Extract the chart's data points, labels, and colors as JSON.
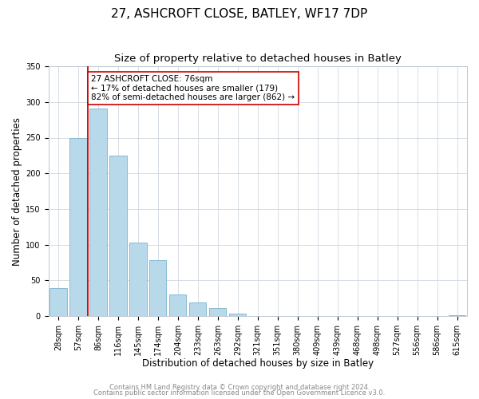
{
  "title": "27, ASHCROFT CLOSE, BATLEY, WF17 7DP",
  "subtitle": "Size of property relative to detached houses in Batley",
  "xlabel": "Distribution of detached houses by size in Batley",
  "ylabel": "Number of detached properties",
  "bar_labels": [
    "28sqm",
    "57sqm",
    "86sqm",
    "116sqm",
    "145sqm",
    "174sqm",
    "204sqm",
    "233sqm",
    "263sqm",
    "292sqm",
    "321sqm",
    "351sqm",
    "380sqm",
    "409sqm",
    "439sqm",
    "468sqm",
    "498sqm",
    "527sqm",
    "556sqm",
    "586sqm",
    "615sqm"
  ],
  "bar_values": [
    39,
    250,
    291,
    225,
    103,
    78,
    30,
    19,
    11,
    4,
    0,
    0,
    0,
    0,
    0,
    0,
    0,
    0,
    0,
    0,
    1
  ],
  "bar_color": "#b8d9ea",
  "bar_edge_color": "#7ab3cc",
  "vline_color": "#cc0000",
  "annotation_title": "27 ASHCROFT CLOSE: 76sqm",
  "annotation_line1": "← 17% of detached houses are smaller (179)",
  "annotation_line2": "82% of semi-detached houses are larger (862) →",
  "annotation_box_color": "white",
  "annotation_box_edge": "#cc0000",
  "ylim": [
    0,
    350
  ],
  "yticks": [
    0,
    50,
    100,
    150,
    200,
    250,
    300,
    350
  ],
  "footer1": "Contains HM Land Registry data © Crown copyright and database right 2024.",
  "footer2": "Contains public sector information licensed under the Open Government Licence v3.0.",
  "title_fontsize": 11,
  "subtitle_fontsize": 9.5,
  "axis_label_fontsize": 8.5,
  "tick_fontsize": 7,
  "annot_fontsize": 7.5,
  "footer_fontsize": 6
}
